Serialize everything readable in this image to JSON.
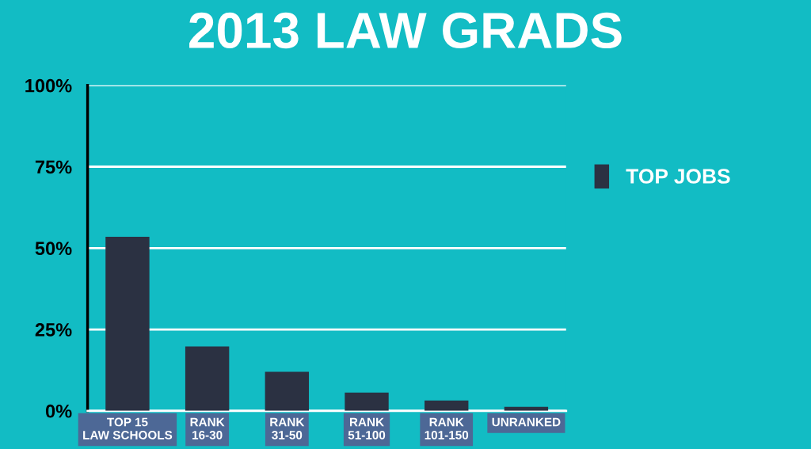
{
  "chart_data": {
    "type": "bar",
    "title": "2013 LAW GRADS",
    "categories": [
      "TOP 15\nLAW SCHOOLS",
      "RANK\n16-30",
      "RANK\n31-50",
      "RANK\n51-100",
      "RANK\n101-150",
      "UNRANKED"
    ],
    "series": [
      {
        "name": "TOP JOBS",
        "color": "#2b3142",
        "values": [
          53.5,
          19.8,
          12,
          5.6,
          3.2,
          1.2
        ]
      }
    ],
    "ylim": [
      0,
      100
    ],
    "yticks": [
      {
        "value": 0,
        "label": "0%"
      },
      {
        "value": 25,
        "label": "25%"
      },
      {
        "value": 50,
        "label": "50%"
      },
      {
        "value": 75,
        "label": "75%"
      },
      {
        "value": 100,
        "label": "100%"
      }
    ],
    "grid": "y",
    "legend": "right"
  }
}
